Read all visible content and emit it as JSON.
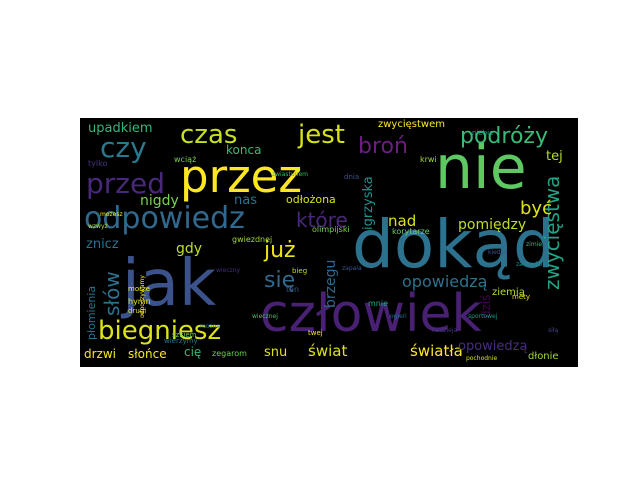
{
  "words": [
    {
      "text": "nie",
      "color": "#5ec962"
    },
    {
      "text": "dokąd",
      "color": "#2c728e"
    },
    {
      "text": "jak",
      "color": "#3b528b"
    },
    {
      "text": "człowiek",
      "color": "#482173"
    },
    {
      "text": "przez",
      "color": "#fde725"
    },
    {
      "text": "odpowiedz",
      "color": "#31688e"
    },
    {
      "text": "czas",
      "color": "#c8e020"
    },
    {
      "text": "jest",
      "color": "#d8e219"
    },
    {
      "text": "czy",
      "color": "#2a788e"
    },
    {
      "text": "przed",
      "color": "#482878"
    },
    {
      "text": "biegniesz",
      "color": "#dde318"
    },
    {
      "text": "broń",
      "color": "#6b1d81"
    },
    {
      "text": "podróży",
      "color": "#3aba76"
    },
    {
      "text": "które",
      "color": "#482878"
    },
    {
      "text": "już",
      "color": "#eae51a"
    },
    {
      "text": "się",
      "color": "#31688e"
    },
    {
      "text": "upadkiem",
      "color": "#35b779"
    },
    {
      "text": "zwycięstwa",
      "color": "#20a386"
    },
    {
      "text": "słów",
      "color": "#2c728e"
    },
    {
      "text": "opowiedzą",
      "color": "#2c728e"
    },
    {
      "text": "światła",
      "color": "#fde725"
    },
    {
      "text": "świat",
      "color": "#dde318"
    },
    {
      "text": "być",
      "color": "#dde318"
    },
    {
      "text": "pomiędzy",
      "color": "#bddf26"
    },
    {
      "text": "nad",
      "color": "#d8e219"
    },
    {
      "text": "gdy",
      "color": "#bddf26"
    },
    {
      "text": "nigdy",
      "color": "#7ad151"
    },
    {
      "text": "nas",
      "color": "#2c728e"
    },
    {
      "text": "konca",
      "color": "#3aba76"
    },
    {
      "text": "odłożona",
      "color": "#d8e219"
    },
    {
      "text": "brzegu",
      "color": "#31688e"
    },
    {
      "text": "snu",
      "color": "#dde318"
    },
    {
      "text": "cię",
      "color": "#35b779"
    },
    {
      "text": "drzwi",
      "color": "#fde725"
    },
    {
      "text": "słońce",
      "color": "#fde725"
    },
    {
      "text": "znicz",
      "color": "#2c728e"
    },
    {
      "text": "igrzyska",
      "color": "#21918c"
    },
    {
      "text": "zwycięstwem",
      "color": "#fde725"
    },
    {
      "text": "tej",
      "color": "#b5de2b"
    },
    {
      "text": "dziś",
      "color": "#440154"
    },
    {
      "text": "płomienia",
      "color": "#2c728e"
    },
    {
      "text": "opowiedzą",
      "color": "#472d7b"
    },
    {
      "text": "mnie",
      "color": "#22a884"
    },
    {
      "text": "dłonie",
      "color": "#9fda3a"
    },
    {
      "text": "ziemią",
      "color": "#b5de2b"
    },
    {
      "text": "olimpijski",
      "color": "#7ad151"
    },
    {
      "text": "korytarze",
      "color": "#6ece58"
    },
    {
      "text": "tylko",
      "color": "#46337e"
    },
    {
      "text": "hymn",
      "color": "#dde318"
    },
    {
      "text": "drugi",
      "color": "#d8e219"
    },
    {
      "text": "morze",
      "color": "#fde725"
    },
    {
      "text": "wciąż",
      "color": "#7ad151"
    },
    {
      "text": "gwiezdnej",
      "color": "#9fda3a"
    },
    {
      "text": "zegarom",
      "color": "#6ece58"
    },
    {
      "text": "szkiem",
      "color": "#6ece58"
    },
    {
      "text": "twej",
      "color": "#fde725"
    },
    {
      "text": "mety",
      "color": "#e5e419"
    },
    {
      "text": "ten",
      "color": "#3b528b"
    },
    {
      "text": "bieg",
      "color": "#b5de2b"
    },
    {
      "text": "krwi",
      "color": "#9fda3a"
    },
    {
      "text": "niebie",
      "color": "#1fa187"
    },
    {
      "text": "mozesz",
      "color": "#fde725"
    },
    {
      "text": "wzwyż",
      "color": "#b5de2b"
    },
    {
      "text": "zwiastunem",
      "color": "#3aba76"
    },
    {
      "text": "wiecznej",
      "color": "#48c16e"
    },
    {
      "text": "mozna",
      "color": "#2a788e"
    },
    {
      "text": "sportowej",
      "color": "#1f9a8a"
    },
    {
      "text": "kiedyś",
      "color": "#3b528b"
    },
    {
      "text": "nadzieja",
      "color": "#443983"
    },
    {
      "text": "zimie",
      "color": "#35b779"
    },
    {
      "text": "zapala",
      "color": "#3b528b"
    },
    {
      "text": "ogień",
      "color": "#31688e"
    },
    {
      "text": "wieczny",
      "color": "#472d7b"
    },
    {
      "text": "pochodnie",
      "color": "#d8e219"
    },
    {
      "text": "zachodzi",
      "color": "#21918c"
    },
    {
      "text": "odpoczywamy",
      "color": "#fde725"
    },
    {
      "text": "siłą",
      "color": "#414487"
    },
    {
      "text": "wierzymy",
      "color": "#2a788e"
    },
    {
      "text": "dnia",
      "color": "#39568c"
    }
  ]
}
